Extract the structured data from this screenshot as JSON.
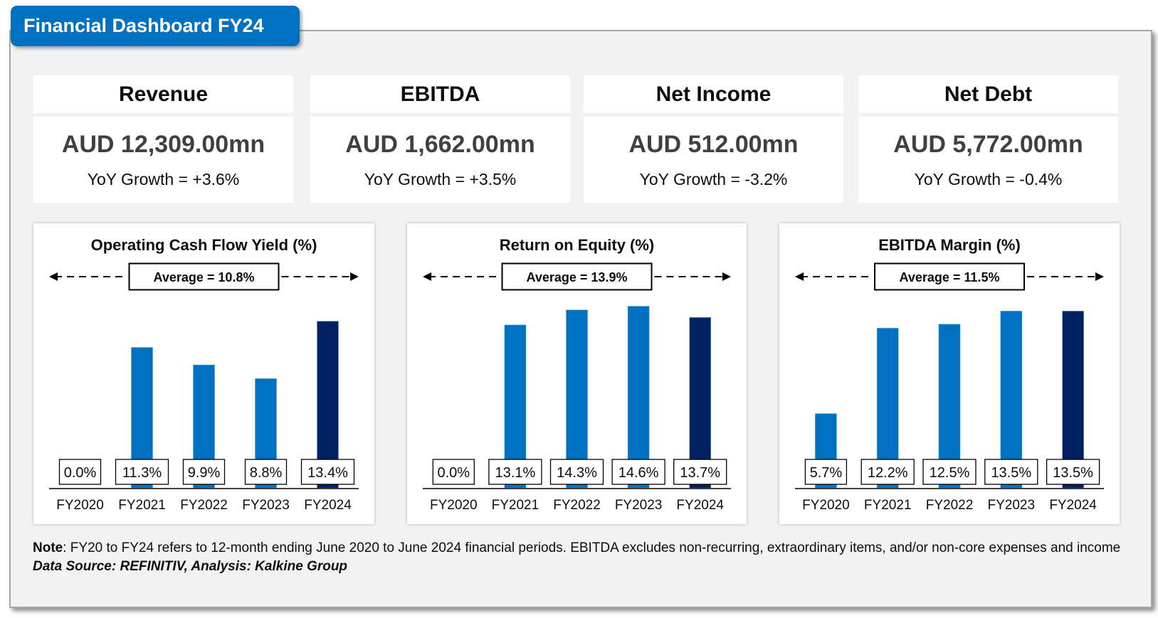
{
  "header": {
    "title": "Financial Dashboard FY24"
  },
  "kpis": [
    {
      "label": "Revenue",
      "value": "AUD 12,309.00mn",
      "growth": "YoY Growth = +3.6%"
    },
    {
      "label": "EBITDA",
      "value": "AUD 1,662.00mn",
      "growth": "YoY Growth = +3.5%"
    },
    {
      "label": "Net Income",
      "value": "AUD 512.00mn",
      "growth": "YoY Growth = -3.2%"
    },
    {
      "label": "Net Debt",
      "value": "AUD 5,772.00mn",
      "growth": "YoY Growth = -0.4%"
    }
  ],
  "colors": {
    "bar": "#0070c0",
    "bar_highlight": "#002060",
    "accent": "#0070c0"
  },
  "chart_data": [
    {
      "type": "bar",
      "title": "Operating Cash Flow Yield (%)",
      "categories": [
        "FY2020",
        "FY2021",
        "FY2022",
        "FY2023",
        "FY2024"
      ],
      "values": [
        0.0,
        11.3,
        9.9,
        8.8,
        13.4
      ],
      "data_labels": [
        "0.0%",
        "11.3%",
        "9.9%",
        "8.8%",
        "13.4%"
      ],
      "average_label": "Average = 10.8%",
      "highlight_category": "FY2024",
      "xlabel": "",
      "ylabel": "",
      "ylim": [
        0,
        16
      ],
      "grid": false,
      "legend": "none"
    },
    {
      "type": "bar",
      "title": "Return on Equity (%)",
      "categories": [
        "FY2020",
        "FY2021",
        "FY2022",
        "FY2023",
        "FY2024"
      ],
      "values": [
        0.0,
        13.1,
        14.3,
        14.6,
        13.7
      ],
      "data_labels": [
        "0.0%",
        "13.1%",
        "14.3%",
        "14.6%",
        "13.7%"
      ],
      "average_label": "Average = 13.9%",
      "highlight_category": "FY2024",
      "xlabel": "",
      "ylabel": "",
      "ylim": [
        0,
        16
      ],
      "grid": false,
      "legend": "none"
    },
    {
      "type": "bar",
      "title": "EBITDA Margin (%)",
      "categories": [
        "FY2020",
        "FY2021",
        "FY2022",
        "FY2023",
        "FY2024"
      ],
      "values": [
        5.7,
        12.2,
        12.5,
        13.5,
        13.5
      ],
      "data_labels": [
        "5.7%",
        "12.2%",
        "12.5%",
        "13.5%",
        "13.5%"
      ],
      "average_label": "Average = 11.5%",
      "highlight_category": "FY2024",
      "xlabel": "",
      "ylabel": "",
      "ylim": [
        0,
        15.2
      ],
      "grid": false,
      "legend": "none"
    }
  ],
  "footer": {
    "note_label": "Note",
    "note_text": ": FY20 to FY24 refers to 12-month ending June 2020 to June 2024 financial periods. EBITDA excludes non-recurring, extraordinary items, and/or non-core expenses and income",
    "source": "Data Source: REFINITIV, Analysis: Kalkine Group"
  }
}
